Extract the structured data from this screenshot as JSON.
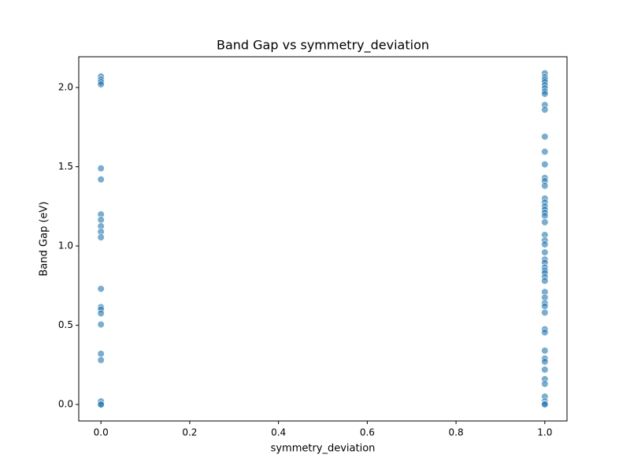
{
  "chart_data": {
    "type": "scatter",
    "title": "Band Gap vs symmetry_deviation",
    "xlabel": "symmetry_deviation",
    "ylabel": "Band Gap (eV)",
    "color": "#1f77b4",
    "x": [
      0,
      0,
      0,
      0,
      0,
      0,
      0,
      0,
      0,
      0,
      0,
      0,
      0,
      0,
      0,
      0,
      0,
      0,
      0,
      0,
      0,
      1,
      1,
      1,
      1,
      1,
      1,
      1,
      1,
      1,
      1,
      1,
      1,
      1,
      1,
      1,
      1,
      1,
      1,
      1,
      1,
      1,
      1,
      1,
      1,
      1,
      1,
      1,
      1,
      1,
      1,
      1,
      1,
      1,
      1,
      1,
      1,
      1,
      1,
      1,
      1,
      1,
      1,
      1,
      1,
      1,
      1,
      1,
      1,
      1,
      1,
      1
    ],
    "values": [
      2.07,
      2.05,
      2.035,
      2.02,
      1.49,
      1.42,
      1.2,
      1.165,
      1.125,
      1.09,
      1.055,
      0.73,
      0.615,
      0.6,
      0.575,
      0.505,
      0.32,
      0.28,
      0.02,
      0.0,
      0.0,
      2.09,
      2.065,
      2.05,
      2.035,
      2.015,
      1.995,
      1.975,
      1.96,
      1.89,
      1.86,
      1.69,
      1.595,
      1.515,
      1.43,
      1.41,
      1.38,
      1.3,
      1.275,
      1.25,
      1.23,
      1.21,
      1.19,
      1.15,
      1.07,
      1.035,
      1.01,
      0.96,
      0.915,
      0.895,
      0.865,
      0.845,
      0.83,
      0.805,
      0.78,
      0.71,
      0.675,
      0.64,
      0.62,
      0.58,
      0.475,
      0.455,
      0.34,
      0.29,
      0.27,
      0.22,
      0.16,
      0.13,
      0.05,
      0.02,
      0.005,
      0.0
    ],
    "xlim": [
      -0.05,
      1.05
    ],
    "ylim": [
      -0.104,
      2.194
    ],
    "xticks": [
      {
        "value": 0,
        "label": "0.0"
      },
      0.2,
      0.4,
      0.6,
      0.8,
      {
        "value": 1,
        "label": "1.0"
      }
    ],
    "yticks": [
      {
        "value": 0,
        "label": "0.0"
      },
      0.5,
      {
        "value": 1,
        "label": "1.0"
      },
      1.5,
      {
        "value": 2,
        "label": "2.0"
      }
    ],
    "grid": false
  }
}
